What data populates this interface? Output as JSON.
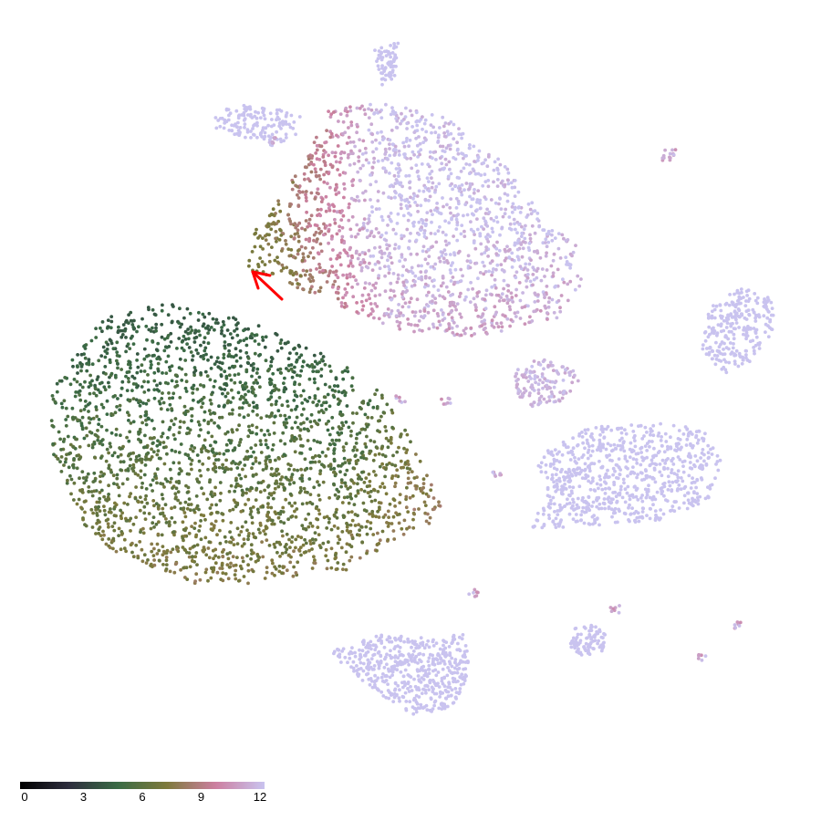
{
  "chart_data": {
    "type": "scatter",
    "title": "",
    "xlabel": "",
    "ylabel": "",
    "grid": false,
    "colorbar": {
      "ticks": [
        "0",
        "3",
        "6",
        "9",
        "12"
      ],
      "range": [
        0,
        12
      ],
      "placement": "bottom-left",
      "stops": [
        "#000000",
        "#2e2e3e",
        "#3a6b45",
        "#7e7a3c",
        "#cc7fa0",
        "#c9c3ef"
      ]
    },
    "annotation": {
      "type": "arrow",
      "color": "#ff0000"
    },
    "clusters": [
      {
        "id": "large-left",
        "n": 2400,
        "value_range": [
          4,
          9
        ]
      },
      {
        "id": "large-top",
        "n": 1700,
        "value_range": [
          7,
          12
        ]
      },
      {
        "id": "top-left-small",
        "n": 140,
        "value_range": [
          12,
          12
        ]
      },
      {
        "id": "top-spike",
        "n": 70,
        "value_range": [
          12,
          12
        ]
      },
      {
        "id": "right-upper",
        "n": 260,
        "value_range": [
          12,
          12
        ]
      },
      {
        "id": "center-small",
        "n": 130,
        "value_range": [
          11,
          12
        ]
      },
      {
        "id": "right-middle",
        "n": 750,
        "value_range": [
          12,
          12
        ]
      },
      {
        "id": "bottom-center",
        "n": 520,
        "value_range": [
          12,
          12
        ]
      },
      {
        "id": "bottom-right-small",
        "n": 90,
        "value_range": [
          12,
          12
        ]
      },
      {
        "id": "outlier-groups",
        "n": 70,
        "value_range": [
          10,
          12
        ]
      }
    ]
  }
}
